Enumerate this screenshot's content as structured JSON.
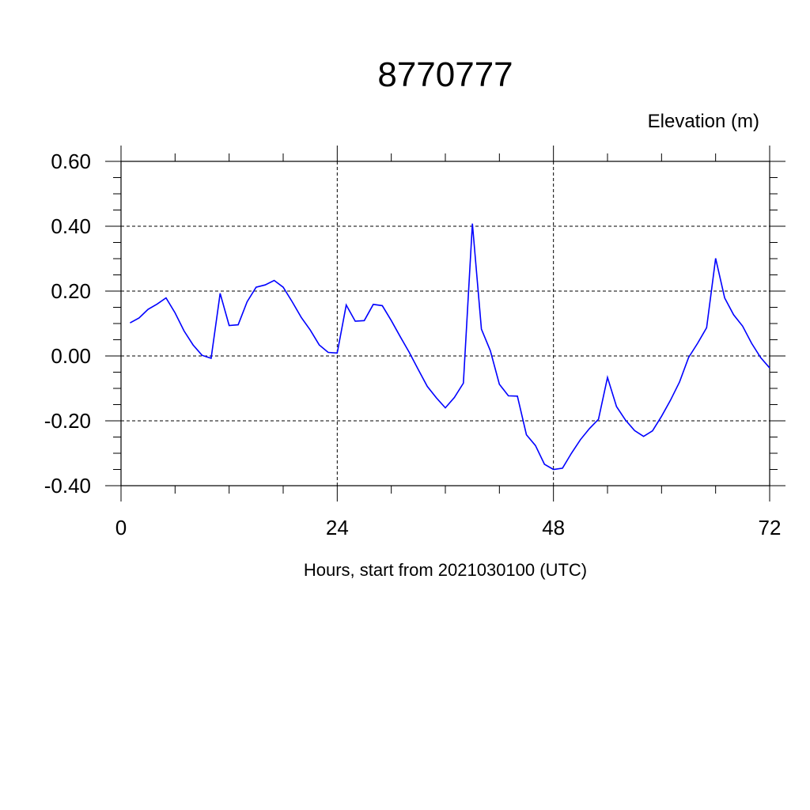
{
  "chart_data": {
    "type": "line",
    "title": "8770777",
    "subtitle_right": "Elevation (m)",
    "xlabel": "Hours, start from 2021030100 (UTC)",
    "ylabel": "",
    "xlim": [
      0,
      72
    ],
    "ylim": [
      -0.4,
      0.6
    ],
    "x_ticks": [
      0,
      24,
      48,
      72
    ],
    "x_tick_labels": [
      "0",
      "24",
      "48",
      "72"
    ],
    "y_ticks": [
      -0.4,
      -0.2,
      0.0,
      0.2,
      0.4,
      0.6
    ],
    "y_tick_labels": [
      "-0.40",
      "-0.20",
      "0.00",
      "0.20",
      "0.40",
      "0.60"
    ],
    "grid": "dashed at major ticks",
    "series": [
      {
        "color": "#0000ff",
        "x": [
          1,
          2,
          3,
          4,
          5,
          6,
          7,
          8,
          9,
          10,
          11,
          12,
          13,
          14,
          15,
          16,
          17,
          18,
          19,
          20,
          21,
          22,
          23,
          24,
          25,
          26,
          27,
          28,
          29,
          30,
          31,
          32,
          33,
          34,
          35,
          36,
          37,
          38,
          39,
          40,
          41,
          42,
          43,
          44,
          45,
          46,
          47,
          48,
          49,
          50,
          51,
          52,
          53,
          54,
          55,
          56,
          57,
          58,
          59,
          60,
          61,
          62,
          63,
          64,
          65,
          66,
          67,
          68,
          69,
          70,
          71,
          72
        ],
        "y": [
          0.102,
          0.117,
          0.144,
          0.16,
          0.179,
          0.133,
          0.077,
          0.034,
          0.002,
          -0.007,
          0.193,
          0.094,
          0.096,
          0.167,
          0.212,
          0.219,
          0.233,
          0.212,
          0.167,
          0.119,
          0.08,
          0.034,
          0.011,
          0.009,
          0.157,
          0.107,
          0.109,
          0.159,
          0.155,
          0.109,
          0.059,
          0.011,
          -0.042,
          -0.094,
          -0.129,
          -0.16,
          -0.128,
          -0.084,
          0.408,
          0.083,
          0.016,
          -0.087,
          -0.123,
          -0.124,
          -0.243,
          -0.276,
          -0.334,
          -0.35,
          -0.346,
          -0.3,
          -0.258,
          -0.224,
          -0.195,
          -0.066,
          -0.156,
          -0.198,
          -0.23,
          -0.248,
          -0.231,
          -0.186,
          -0.136,
          -0.08,
          -0.005,
          0.039,
          0.087,
          0.301,
          0.179,
          0.127,
          0.092,
          0.039,
          -0.005,
          -0.037
        ]
      }
    ]
  }
}
